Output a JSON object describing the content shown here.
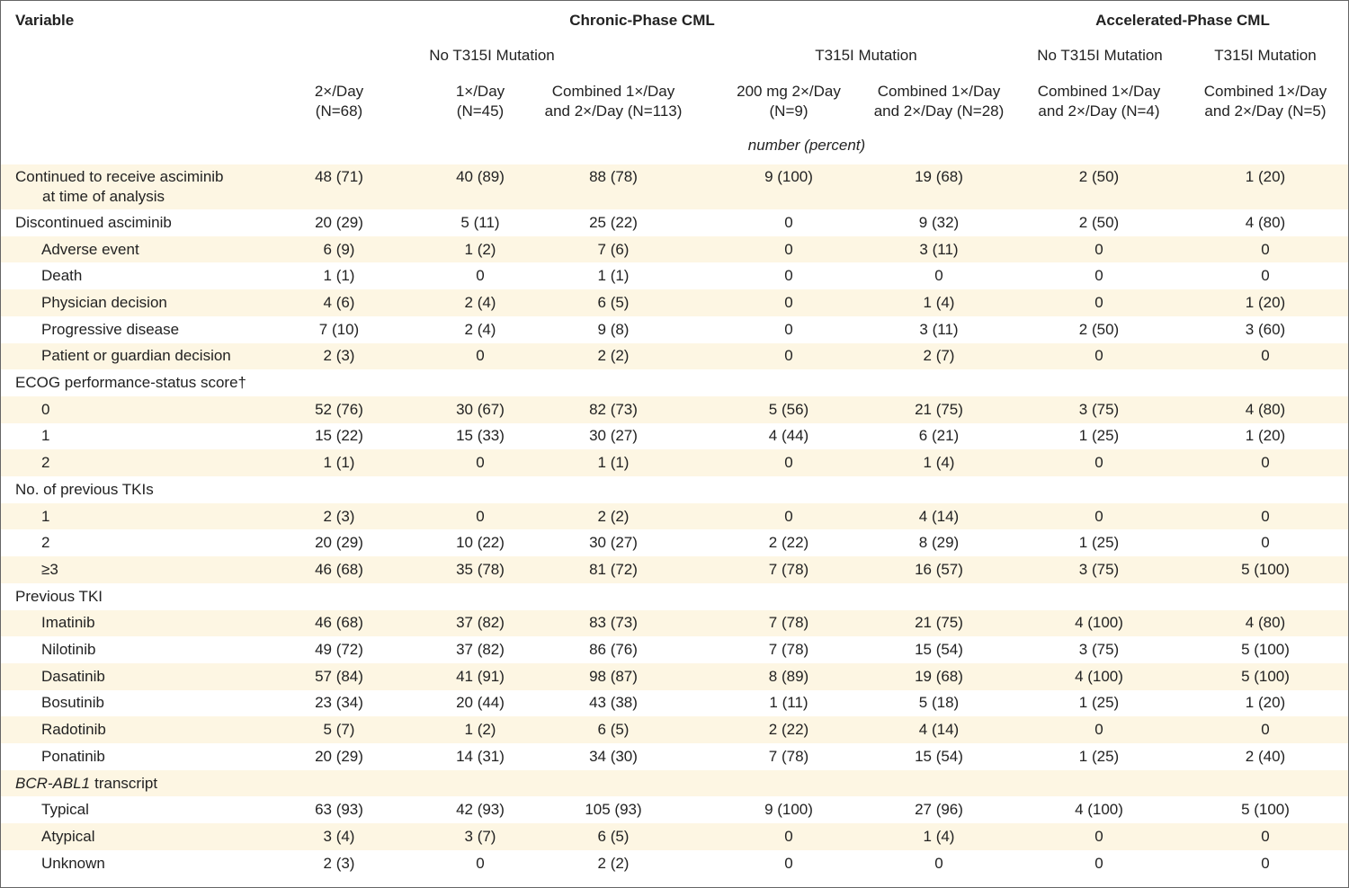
{
  "header": {
    "variable": "Variable",
    "groups": [
      "Chronic-Phase CML",
      "Accelerated-Phase CML"
    ],
    "subgroups": [
      "No T315I Mutation",
      "T315I Mutation",
      "No T315I Mutation",
      "T315I Mutation"
    ],
    "columns": [
      [
        "2×/Day",
        "(N=68)"
      ],
      [
        "1×/Day",
        "(N=45)"
      ],
      [
        "Combined 1×/Day",
        "and 2×/Day (N=113)"
      ],
      [
        "200 mg 2×/Day",
        "(N=9)"
      ],
      [
        "Combined 1×/Day",
        "and 2×/Day (N=28)"
      ],
      [
        "Combined 1×/Day",
        "and 2×/Day (N=4)"
      ],
      [
        "Combined 1×/Day",
        "and 2×/Day (N=5)"
      ]
    ],
    "unit": "number (percent)"
  },
  "rows": [
    {
      "label": [
        "Continued to receive asciminib",
        "at time of analysis"
      ],
      "values": [
        "48 (71)",
        "40 (89)",
        "88 (78)",
        "9 (100)",
        "19 (68)",
        "2 (50)",
        "1 (20)"
      ]
    },
    {
      "label": [
        "Discontinued asciminib"
      ],
      "values": [
        "20 (29)",
        "5 (11)",
        "25 (22)",
        "0",
        "9 (32)",
        "2 (50)",
        "4 (80)"
      ]
    },
    {
      "label": [
        "Adverse event"
      ],
      "indent": true,
      "values": [
        "6 (9)",
        "1 (2)",
        "7 (6)",
        "0",
        "3 (11)",
        "0",
        "0"
      ]
    },
    {
      "label": [
        "Death"
      ],
      "indent": true,
      "values": [
        "1 (1)",
        "0",
        "1 (1)",
        "0",
        "0",
        "0",
        "0"
      ]
    },
    {
      "label": [
        "Physician decision"
      ],
      "indent": true,
      "values": [
        "4 (6)",
        "2 (4)",
        "6 (5)",
        "0",
        "1 (4)",
        "0",
        "1 (20)"
      ]
    },
    {
      "label": [
        "Progressive disease"
      ],
      "indent": true,
      "values": [
        "7 (10)",
        "2 (4)",
        "9 (8)",
        "0",
        "3 (11)",
        "2 (50)",
        "3 (60)"
      ]
    },
    {
      "label": [
        "Patient or guardian decision"
      ],
      "indent": true,
      "values": [
        "2 (3)",
        "0",
        "2 (2)",
        "0",
        "2 (7)",
        "0",
        "0"
      ]
    },
    {
      "label": [
        "ECOG performance-status score†"
      ]
    },
    {
      "label": [
        "0"
      ],
      "indent": true,
      "values": [
        "52 (76)",
        "30 (67)",
        "82 (73)",
        "5 (56)",
        "21 (75)",
        "3 (75)",
        "4 (80)"
      ]
    },
    {
      "label": [
        "1"
      ],
      "indent": true,
      "values": [
        "15 (22)",
        "15 (33)",
        "30 (27)",
        "4 (44)",
        "6 (21)",
        "1 (25)",
        "1 (20)"
      ]
    },
    {
      "label": [
        "2"
      ],
      "indent": true,
      "values": [
        "1 (1)",
        "0",
        "1 (1)",
        "0",
        "1 (4)",
        "0",
        "0"
      ]
    },
    {
      "label": [
        "No. of previous TKIs"
      ]
    },
    {
      "label": [
        "1"
      ],
      "indent": true,
      "values": [
        "2 (3)",
        "0",
        "2 (2)",
        "0",
        "4 (14)",
        "0",
        "0"
      ]
    },
    {
      "label": [
        "2"
      ],
      "indent": true,
      "values": [
        "20 (29)",
        "10 (22)",
        "30 (27)",
        "2 (22)",
        "8 (29)",
        "1 (25)",
        "0"
      ]
    },
    {
      "label": [
        "≥3"
      ],
      "indent": true,
      "values": [
        "46 (68)",
        "35 (78)",
        "81 (72)",
        "7 (78)",
        "16 (57)",
        "3 (75)",
        "5 (100)"
      ]
    },
    {
      "label": [
        "Previous TKI"
      ]
    },
    {
      "label": [
        "Imatinib"
      ],
      "indent": true,
      "values": [
        "46 (68)",
        "37 (82)",
        "83 (73)",
        "7 (78)",
        "21 (75)",
        "4 (100)",
        "4 (80)"
      ]
    },
    {
      "label": [
        "Nilotinib"
      ],
      "indent": true,
      "values": [
        "49 (72)",
        "37 (82)",
        "86 (76)",
        "7 (78)",
        "15 (54)",
        "3 (75)",
        "5 (100)"
      ]
    },
    {
      "label": [
        "Dasatinib"
      ],
      "indent": true,
      "values": [
        "57 (84)",
        "41 (91)",
        "98 (87)",
        "8 (89)",
        "19 (68)",
        "4 (100)",
        "5 (100)"
      ]
    },
    {
      "label": [
        "Bosutinib"
      ],
      "indent": true,
      "values": [
        "23 (34)",
        "20 (44)",
        "43 (38)",
        "1 (11)",
        "5 (18)",
        "1 (25)",
        "1 (20)"
      ]
    },
    {
      "label": [
        "Radotinib"
      ],
      "indent": true,
      "values": [
        "5 (7)",
        "1 (2)",
        "6 (5)",
        "2 (22)",
        "4 (14)",
        "0",
        "0"
      ]
    },
    {
      "label": [
        "Ponatinib"
      ],
      "indent": true,
      "values": [
        "20 (29)",
        "14 (31)",
        "34 (30)",
        "7 (78)",
        "15 (54)",
        "1 (25)",
        "2 (40)"
      ]
    },
    {
      "label_parts": [
        {
          "text": "BCR-ABL1",
          "italic": true
        },
        {
          "text": "transcript"
        }
      ]
    },
    {
      "label": [
        "Typical"
      ],
      "indent": true,
      "values": [
        "63 (93)",
        "42 (93)",
        "105 (93)",
        "9 (100)",
        "27 (96)",
        "4 (100)",
        "5 (100)"
      ]
    },
    {
      "label": [
        "Atypical"
      ],
      "indent": true,
      "values": [
        "3 (4)",
        "3 (7)",
        "6 (5)",
        "0",
        "1 (4)",
        "0",
        "0"
      ]
    },
    {
      "label": [
        "Unknown"
      ],
      "indent": true,
      "values": [
        "2 (3)",
        "0",
        "2 (2)",
        "0",
        "0",
        "0",
        "0"
      ]
    }
  ]
}
